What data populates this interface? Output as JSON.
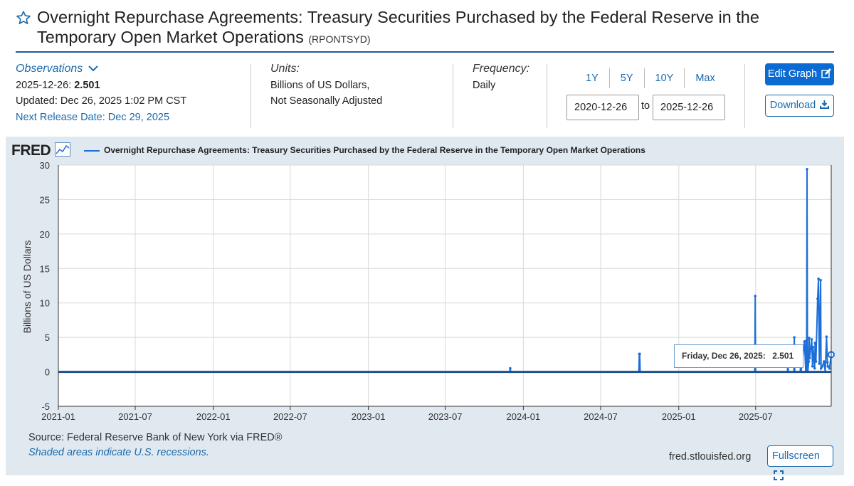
{
  "header": {
    "title": "Overnight Repurchase Agreements: Treasury Securities Purchased by the Federal Reserve in the Temporary Open Market Operations",
    "series_id": "(RPONTSYD)"
  },
  "observations": {
    "label": "Observations",
    "date": "2025-12-26:",
    "value": "2.501",
    "updated": "Updated: Dec 26, 2025 1:02 PM CST",
    "next_release": "Next Release Date: Dec 29, 2025"
  },
  "units": {
    "label": "Units:",
    "line1": "Billions of US Dollars,",
    "line2": "Not Seasonally Adjusted"
  },
  "frequency": {
    "label": "Frequency:",
    "value": "Daily"
  },
  "range": {
    "buttons": [
      "1Y",
      "5Y",
      "10Y",
      "Max"
    ],
    "start": "2020-12-26",
    "to": "to",
    "end": "2025-12-26"
  },
  "actions": {
    "edit_graph": "Edit Graph",
    "download": "Download",
    "fullscreen": "Fullscreen"
  },
  "graph": {
    "logo": "FRED",
    "legend": "Overnight Repurchase Agreements: Treasury Securities Purchased by the Federal Reserve in the Temporary Open Market Operations",
    "tooltip_label": "Friday, Dec 26, 2025:",
    "tooltip_value": "2.501",
    "source": "Source: Federal Reserve Bank of New York via FRED®",
    "recessions": "Shaded areas indicate U.S. recessions.",
    "site": "fred.stlouisfed.org"
  },
  "colors": {
    "accent": "#1a6aad",
    "series": "#1c6fd8",
    "panel": "#e1e9f0",
    "button": "#0c6bd2"
  },
  "chart_data": {
    "type": "line",
    "title": "",
    "xlabel": "",
    "ylabel": "Billions of US Dollars",
    "ylim": [
      -5,
      30
    ],
    "yticks": [
      -5,
      0,
      5,
      10,
      15,
      20,
      25,
      30
    ],
    "xlim": [
      "2021-01-01",
      "2025-12-26"
    ],
    "xticks": [
      "2021-01",
      "2021-07",
      "2022-01",
      "2022-07",
      "2023-01",
      "2023-07",
      "2024-01",
      "2024-07",
      "2025-01",
      "2025-07"
    ],
    "grid": true,
    "legend_position": "top",
    "series": [
      {
        "name": "Overnight Repurchase Agreements: Treasury Securities Purchased by the Federal Reserve in the Temporary Open Market Operations",
        "x": [
          "2021-01-01",
          "2023-11-30",
          "2023-12-01",
          "2023-12-02",
          "2024-09-29",
          "2024-09-30",
          "2024-10-01",
          "2024-10-02",
          "2025-06-29",
          "2025-06-30",
          "2025-07-01",
          "2025-09-14",
          "2025-09-15",
          "2025-09-16",
          "2025-09-29",
          "2025-09-30",
          "2025-10-01",
          "2025-10-14",
          "2025-10-15",
          "2025-10-16",
          "2025-10-24",
          "2025-10-27",
          "2025-10-28",
          "2025-10-29",
          "2025-10-30",
          "2025-10-31",
          "2025-11-01",
          "2025-11-03",
          "2025-11-04",
          "2025-11-05",
          "2025-11-10",
          "2025-11-12",
          "2025-11-13",
          "2025-11-17",
          "2025-11-18",
          "2025-11-20",
          "2025-11-24",
          "2025-11-26",
          "2025-11-28",
          "2025-12-01",
          "2025-12-02",
          "2025-12-05",
          "2025-12-09",
          "2025-12-12",
          "2025-12-15",
          "2025-12-17",
          "2025-12-18",
          "2025-12-22",
          "2025-12-26"
        ],
        "values": [
          0,
          0,
          0.5,
          0,
          0,
          2.6,
          2.6,
          0,
          0,
          11,
          0,
          0,
          1.5,
          0,
          0,
          5,
          0,
          0,
          1.0,
          0,
          4.4,
          0,
          4.5,
          0,
          29.4,
          3.0,
          0,
          1.5,
          4.9,
          2.0,
          4.7,
          0.8,
          3.6,
          0.5,
          4.2,
          1.5,
          10.6,
          13.5,
          1.2,
          13.3,
          0.5,
          0.8,
          1.5,
          0,
          5.1,
          1.4,
          0.8,
          0.5,
          2.501
        ]
      }
    ]
  }
}
